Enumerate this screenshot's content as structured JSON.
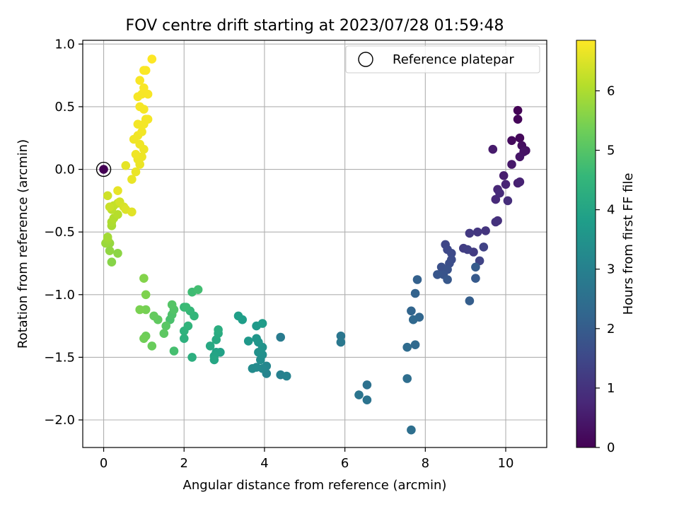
{
  "chart_data": {
    "type": "scatter",
    "title": "FOV centre drift starting at 2023/07/28 01:59:48",
    "xlabel": "Angular distance from reference (arcmin)",
    "ylabel": "Rotation from reference (arcmin)",
    "xlim": [
      -0.52,
      11.02
    ],
    "ylim": [
      -2.22,
      1.03
    ],
    "xticks": [
      "0",
      "2",
      "4",
      "6",
      "8",
      "10"
    ],
    "yticks": [
      "−2.0",
      "−1.5",
      "−1.0",
      "−0.5",
      "0.0",
      "0.5",
      "1.0"
    ],
    "grid": true,
    "legend": {
      "position": "top-right",
      "label": "Reference platepar"
    },
    "reference_point": {
      "x": 0,
      "y": 0
    },
    "colorbar": {
      "label": "Hours from first FF file",
      "range": [
        0,
        6.85
      ],
      "ticks": [
        "0",
        "1",
        "2",
        "3",
        "4",
        "5",
        "6"
      ],
      "colormap": "viridis"
    },
    "points": [
      [
        10.3,
        0.47,
        0.05
      ],
      [
        10.3,
        0.4,
        0.1
      ],
      [
        10.35,
        0.25,
        0.15
      ],
      [
        10.15,
        0.23,
        0.2
      ],
      [
        10.4,
        0.19,
        0.25
      ],
      [
        10.5,
        0.15,
        0.3
      ],
      [
        10.45,
        0.14,
        0.35
      ],
      [
        10.35,
        0.1,
        0.4
      ],
      [
        10.15,
        0.04,
        0.45
      ],
      [
        9.68,
        0.16,
        0.5
      ],
      [
        9.95,
        -0.05,
        0.55
      ],
      [
        10.3,
        -0.11,
        0.6
      ],
      [
        10.35,
        -0.1,
        0.65
      ],
      [
        10.0,
        -0.12,
        0.7
      ],
      [
        9.8,
        -0.16,
        0.75
      ],
      [
        9.75,
        -0.24,
        0.8
      ],
      [
        9.85,
        -0.19,
        0.85
      ],
      [
        10.05,
        -0.25,
        0.9
      ],
      [
        9.8,
        -0.41,
        0.95
      ],
      [
        9.75,
        -0.42,
        1.0
      ],
      [
        9.5,
        -0.49,
        1.05
      ],
      [
        9.3,
        -0.5,
        1.1
      ],
      [
        9.1,
        -0.51,
        1.15
      ],
      [
        9.2,
        -0.66,
        1.2
      ],
      [
        8.95,
        -0.63,
        1.25
      ],
      [
        9.05,
        -0.64,
        1.3
      ],
      [
        9.45,
        -0.62,
        1.35
      ],
      [
        9.35,
        -0.73,
        1.4
      ],
      [
        8.5,
        -0.6,
        1.45
      ],
      [
        8.55,
        -0.64,
        1.5
      ],
      [
        8.65,
        -0.67,
        1.55
      ],
      [
        8.65,
        -0.72,
        1.6
      ],
      [
        8.6,
        -0.75,
        1.65
      ],
      [
        8.4,
        -0.78,
        1.7
      ],
      [
        8.55,
        -0.8,
        1.75
      ],
      [
        8.45,
        -0.84,
        1.8
      ],
      [
        8.3,
        -0.84,
        1.85
      ],
      [
        8.55,
        -0.88,
        1.9
      ],
      [
        9.25,
        -0.87,
        1.95
      ],
      [
        9.25,
        -0.78,
        2.0
      ],
      [
        9.1,
        -1.05,
        2.05
      ],
      [
        7.8,
        -0.88,
        2.1
      ],
      [
        7.75,
        -0.99,
        2.15
      ],
      [
        7.65,
        -1.13,
        2.2
      ],
      [
        7.85,
        -1.18,
        2.25
      ],
      [
        7.7,
        -1.2,
        2.3
      ],
      [
        7.75,
        -1.4,
        2.35
      ],
      [
        7.55,
        -1.42,
        2.4
      ],
      [
        7.55,
        -1.67,
        2.45
      ],
      [
        7.65,
        -2.08,
        2.5
      ],
      [
        6.55,
        -1.72,
        2.55
      ],
      [
        6.55,
        -1.84,
        2.6
      ],
      [
        6.35,
        -1.8,
        2.65
      ],
      [
        5.9,
        -1.33,
        2.7
      ],
      [
        5.9,
        -1.38,
        2.75
      ],
      [
        4.4,
        -1.34,
        2.85
      ],
      [
        4.4,
        -1.64,
        3.0
      ],
      [
        4.55,
        -1.65,
        3.05
      ],
      [
        4.05,
        -1.63,
        3.1
      ],
      [
        4.05,
        -1.57,
        3.15
      ],
      [
        3.95,
        -1.59,
        3.2
      ],
      [
        3.8,
        -1.58,
        3.25
      ],
      [
        3.7,
        -1.59,
        3.3
      ],
      [
        3.9,
        -1.52,
        3.35
      ],
      [
        3.95,
        -1.48,
        3.4
      ],
      [
        3.85,
        -1.46,
        3.45
      ],
      [
        3.95,
        -1.42,
        3.5
      ],
      [
        3.85,
        -1.38,
        3.55
      ],
      [
        3.8,
        -1.35,
        3.6
      ],
      [
        3.6,
        -1.37,
        3.65
      ],
      [
        3.8,
        -1.25,
        3.7
      ],
      [
        3.95,
        -1.23,
        3.75
      ],
      [
        3.45,
        -1.2,
        3.8
      ],
      [
        3.35,
        -1.17,
        3.85
      ],
      [
        2.9,
        -1.46,
        3.9
      ],
      [
        2.8,
        -1.46,
        3.95
      ],
      [
        2.75,
        -1.49,
        4.0
      ],
      [
        2.75,
        -1.52,
        4.05
      ],
      [
        2.65,
        -1.41,
        4.1
      ],
      [
        2.8,
        -1.36,
        4.15
      ],
      [
        2.85,
        -1.31,
        4.2
      ],
      [
        2.85,
        -1.28,
        4.25
      ],
      [
        2.2,
        -1.5,
        4.3
      ],
      [
        2.0,
        -1.35,
        4.35
      ],
      [
        2.0,
        -1.29,
        4.4
      ],
      [
        2.1,
        -1.25,
        4.45
      ],
      [
        2.25,
        -1.17,
        4.5
      ],
      [
        2.15,
        -1.13,
        4.55
      ],
      [
        2.0,
        -1.1,
        4.6
      ],
      [
        2.05,
        -1.1,
        4.65
      ],
      [
        2.2,
        -0.98,
        4.7
      ],
      [
        2.35,
        -0.96,
        4.75
      ],
      [
        1.75,
        -1.45,
        4.8
      ],
      [
        1.65,
        -1.2,
        4.85
      ],
      [
        1.7,
        -1.16,
        4.9
      ],
      [
        1.75,
        -1.12,
        4.95
      ],
      [
        1.7,
        -1.08,
        5.0
      ],
      [
        1.55,
        -1.25,
        5.05
      ],
      [
        1.5,
        -1.31,
        5.1
      ],
      [
        1.35,
        -1.2,
        5.15
      ],
      [
        1.25,
        -1.17,
        5.2
      ],
      [
        1.2,
        -1.41,
        5.25
      ],
      [
        1.05,
        -1.33,
        5.3
      ],
      [
        1.0,
        -1.35,
        5.35
      ],
      [
        1.05,
        -1.12,
        5.4
      ],
      [
        0.9,
        -1.12,
        5.45
      ],
      [
        1.05,
        -1.0,
        5.5
      ],
      [
        1.0,
        -0.87,
        5.55
      ],
      [
        0.2,
        -0.74,
        5.6
      ],
      [
        0.35,
        -0.67,
        5.65
      ],
      [
        0.15,
        -0.65,
        5.7
      ],
      [
        0.15,
        -0.59,
        5.75
      ],
      [
        0.05,
        -0.59,
        5.8
      ],
      [
        0.1,
        -0.56,
        5.85
      ],
      [
        0.1,
        -0.54,
        5.9
      ],
      [
        0.2,
        -0.45,
        5.95
      ],
      [
        0.2,
        -0.42,
        6.0
      ],
      [
        0.25,
        -0.39,
        6.05
      ],
      [
        0.35,
        -0.36,
        6.1
      ],
      [
        0.2,
        -0.32,
        6.15
      ],
      [
        0.25,
        -0.29,
        6.2
      ],
      [
        0.35,
        -0.27,
        6.25
      ],
      [
        0.15,
        -0.3,
        6.3
      ],
      [
        0.1,
        -0.21,
        6.35
      ],
      [
        0.4,
        -0.26,
        6.4
      ],
      [
        0.5,
        -0.3,
        6.45
      ],
      [
        0.55,
        -0.32,
        6.5
      ],
      [
        0.7,
        -0.34,
        6.55
      ],
      [
        0.55,
        0.03,
        6.6
      ],
      [
        0.35,
        -0.17,
        6.62
      ],
      [
        0.7,
        -0.08,
        6.64
      ],
      [
        0.8,
        -0.02,
        6.65
      ],
      [
        0.9,
        0.04,
        6.66
      ],
      [
        0.85,
        0.08,
        6.67
      ],
      [
        0.95,
        0.1,
        6.68
      ],
      [
        1.0,
        0.16,
        6.69
      ],
      [
        0.9,
        0.2,
        6.7
      ],
      [
        0.8,
        0.12,
        6.7
      ],
      [
        0.75,
        0.24,
        6.71
      ],
      [
        0.85,
        0.27,
        6.72
      ],
      [
        0.95,
        0.3,
        6.73
      ],
      [
        0.85,
        0.36,
        6.74
      ],
      [
        1.0,
        0.36,
        6.75
      ],
      [
        1.05,
        0.4,
        6.75
      ],
      [
        1.1,
        0.4,
        6.76
      ],
      [
        0.9,
        0.5,
        6.77
      ],
      [
        1.0,
        0.48,
        6.77
      ],
      [
        0.85,
        0.58,
        6.78
      ],
      [
        0.95,
        0.6,
        6.78
      ],
      [
        1.1,
        0.6,
        6.79
      ],
      [
        1.0,
        0.65,
        6.8
      ],
      [
        0.9,
        0.71,
        6.8
      ],
      [
        1.0,
        0.79,
        6.81
      ],
      [
        1.05,
        0.79,
        6.82
      ],
      [
        1.2,
        0.88,
        6.85
      ]
    ]
  }
}
